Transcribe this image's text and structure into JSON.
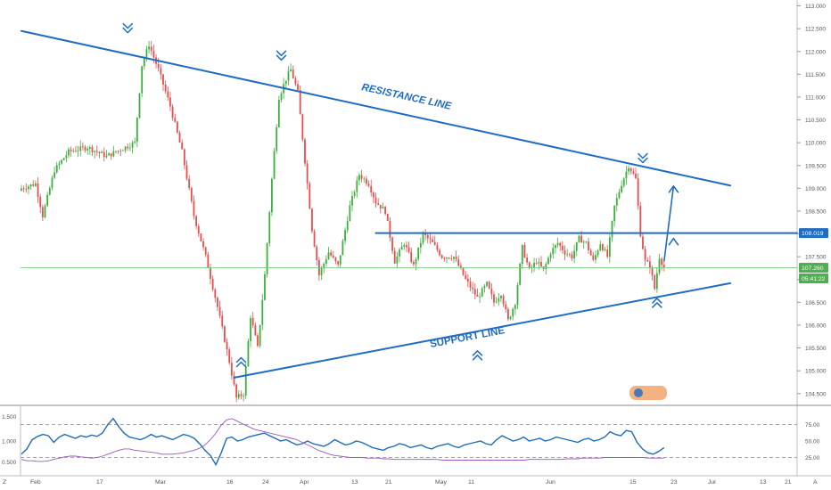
{
  "colors": {
    "line": "#1f6cc4",
    "up": "#3bb13b",
    "down": "#e84d4d",
    "price_line": "#7fc97f",
    "price_tag": "#4caf50",
    "osc_main": "#1e6bb8",
    "osc_second": "#9b59b6",
    "axis_text": "#555555",
    "grid": "#e6e6e6"
  },
  "chart_data": [
    {
      "type": "candlestick",
      "title": "",
      "x_tick_labels": [
        "Feb",
        "17",
        "Mar",
        "16",
        "24",
        "Apr",
        "13",
        "21",
        "May",
        "11",
        "Jun",
        "15",
        "23",
        "Jul",
        "13",
        "21",
        "A"
      ],
      "y_ticks": [
        "113.000",
        "112.500",
        "112.000",
        "111.500",
        "111.000",
        "110.500",
        "110.000",
        "109.500",
        "109.000",
        "108.500",
        "108.000",
        "107.500",
        "107.000",
        "106.500",
        "106.000",
        "105.500",
        "105.000",
        "104.500"
      ],
      "ylim": [
        104.3,
        113.05
      ],
      "price_tag": "107.260",
      "countdown_tag": "05:41:22",
      "level_tag": "108.019",
      "level_value": 108.019,
      "last_price": 107.26,
      "annotations": [
        "RESISTANCE LINE",
        "SUPPORT LINE"
      ],
      "waypoints": [
        [
          0,
          109.0
        ],
        [
          6,
          109.1
        ],
        [
          9,
          108.4
        ],
        [
          14,
          109.4
        ],
        [
          20,
          109.8
        ],
        [
          28,
          109.9
        ],
        [
          36,
          109.7
        ],
        [
          44,
          109.9
        ],
        [
          48,
          110.0
        ],
        [
          51,
          111.7
        ],
        [
          54,
          112.15
        ],
        [
          58,
          111.6
        ],
        [
          63,
          110.8
        ],
        [
          68,
          109.8
        ],
        [
          73,
          108.4
        ],
        [
          78,
          107.5
        ],
        [
          83,
          106.4
        ],
        [
          88,
          105.2
        ],
        [
          91,
          104.4
        ],
        [
          94,
          104.5
        ],
        [
          97,
          106.2
        ],
        [
          100,
          105.5
        ],
        [
          103,
          107.1
        ],
        [
          106,
          109.2
        ],
        [
          109,
          111.0
        ],
        [
          112,
          111.4
        ],
        [
          114,
          111.6
        ],
        [
          117,
          111.1
        ],
        [
          120,
          109.6
        ],
        [
          123,
          108.1
        ],
        [
          126,
          107.1
        ],
        [
          130,
          107.6
        ],
        [
          134,
          107.3
        ],
        [
          139,
          108.6
        ],
        [
          143,
          109.3
        ],
        [
          147,
          109.1
        ],
        [
          150,
          108.7
        ],
        [
          154,
          108.5
        ],
        [
          158,
          107.4
        ],
        [
          162,
          107.8
        ],
        [
          166,
          107.3
        ],
        [
          170,
          108.0
        ],
        [
          174,
          107.8
        ],
        [
          178,
          107.5
        ],
        [
          183,
          107.5
        ],
        [
          188,
          107.0
        ],
        [
          193,
          106.6
        ],
        [
          197,
          106.9
        ],
        [
          200,
          106.5
        ],
        [
          203,
          106.7
        ],
        [
          206,
          106.1
        ],
        [
          209,
          106.5
        ],
        [
          212,
          107.7
        ],
        [
          215,
          107.2
        ],
        [
          218,
          107.4
        ],
        [
          221,
          107.2
        ],
        [
          224,
          107.6
        ],
        [
          227,
          107.8
        ],
        [
          230,
          107.6
        ],
        [
          233,
          107.5
        ],
        [
          236,
          107.9
        ],
        [
          239,
          107.8
        ],
        [
          242,
          107.4
        ],
        [
          245,
          107.8
        ],
        [
          248,
          107.5
        ],
        [
          251,
          108.6
        ],
        [
          254,
          109.1
        ],
        [
          257,
          109.5
        ],
        [
          260,
          109.2
        ],
        [
          262,
          108.0
        ],
        [
          264,
          107.4
        ],
        [
          266,
          107.3
        ],
        [
          268,
          106.8
        ],
        [
          270,
          107.5
        ],
        [
          272,
          107.26
        ]
      ],
      "resistance_line": [
        [
          0,
          112.45
        ],
        [
          300,
          109.06
        ]
      ],
      "support_line": [
        [
          90,
          104.85
        ],
        [
          300,
          106.92
        ]
      ],
      "horizontal_level": [
        [
          150,
          108.019
        ],
        [
          366,
          108.019
        ]
      ],
      "breakout_arrows": [
        [
          [
            272,
            107.4
          ],
          [
            276,
            109.05
          ]
        ],
        [
          [
            276,
            107.9
          ],
          [
            276,
            107.8
          ]
        ]
      ],
      "markers_top": [
        [
          45,
          112.55
        ],
        [
          110,
          111.95
        ],
        [
          263,
          109.7
        ]
      ],
      "markers_bottom": [
        [
          93,
          105.15
        ],
        [
          193,
          105.3
        ],
        [
          269,
          106.45
        ]
      ]
    },
    {
      "type": "line",
      "title": "",
      "y_ticks_left": [
        "1.500",
        "1.000",
        "0.500"
      ],
      "y_ticks_right": [
        "75.00",
        "50.00",
        "25.00"
      ],
      "reference_lines": [
        75,
        25
      ],
      "ylim": [
        0,
        100
      ],
      "series": [
        {
          "name": "",
          "color": "#1e6bb8",
          "values": [
            30,
            38,
            52,
            57,
            60,
            58,
            48,
            56,
            60,
            57,
            54,
            58,
            56,
            59,
            57,
            62,
            75,
            84,
            72,
            62,
            56,
            54,
            52,
            55,
            60,
            56,
            58,
            55,
            52,
            56,
            60,
            58,
            54,
            46,
            36,
            28,
            14,
            32,
            54,
            56,
            50,
            52,
            56,
            58,
            60,
            62,
            58,
            54,
            50,
            52,
            48,
            44,
            46,
            50,
            46,
            44,
            42,
            46,
            52,
            48,
            44,
            46,
            50,
            48,
            44,
            40,
            38,
            36,
            40,
            42,
            46,
            44,
            40,
            42,
            44,
            40,
            38,
            42,
            44,
            46,
            42,
            40,
            44,
            46,
            48,
            50,
            46,
            44,
            52,
            58,
            54,
            50,
            52,
            56,
            50,
            52,
            54,
            50,
            52,
            56,
            54,
            52,
            50,
            48,
            52,
            54,
            50,
            52,
            56,
            64,
            60,
            58,
            66,
            64,
            48,
            38,
            32,
            30,
            34,
            40
          ]
        },
        {
          "name": "",
          "color": "#9b59b6",
          "values": [
            22,
            20,
            20,
            19,
            19,
            20,
            22,
            24,
            26,
            27,
            27,
            26,
            25,
            24,
            25,
            27,
            30,
            33,
            36,
            38,
            38,
            36,
            35,
            34,
            33,
            32,
            30,
            30,
            30,
            31,
            32,
            34,
            36,
            39,
            44,
            52,
            62,
            74,
            82,
            84,
            80,
            76,
            72,
            68,
            66,
            64,
            62,
            60,
            58,
            56,
            54,
            52,
            48,
            44,
            40,
            36,
            33,
            30,
            28,
            27,
            26,
            25,
            25,
            25,
            24,
            24,
            24,
            23,
            23,
            22,
            22,
            22,
            22,
            22,
            22,
            22,
            22,
            22,
            21,
            21,
            21,
            21,
            21,
            21,
            21,
            21,
            21,
            21,
            21,
            21,
            21,
            21,
            21,
            21,
            22,
            22,
            22,
            22,
            22,
            22,
            22,
            23,
            23,
            23,
            24,
            24,
            24,
            24,
            25,
            25,
            25,
            25,
            25,
            25,
            25,
            25,
            24,
            24,
            24,
            24
          ]
        }
      ]
    }
  ]
}
